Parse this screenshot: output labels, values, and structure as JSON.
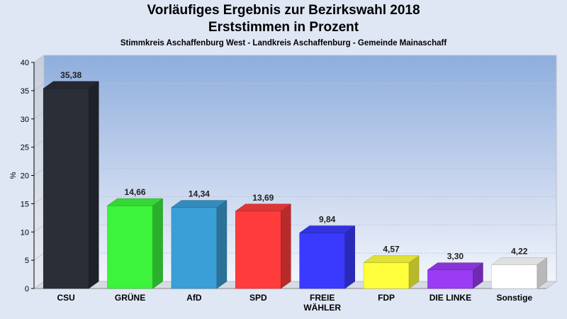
{
  "chart_data": {
    "type": "bar",
    "title": "Vorläufiges Ergebnis zur Bezirkswahl 2018",
    "title2": "Erststimmen in Prozent",
    "subtitle": "Stimmkreis Aschaffenburg West - Landkreis Aschaffenburg - Gemeinde Mainaschaff",
    "ylabel": "%",
    "ylim": [
      0,
      40
    ],
    "yticks": [
      "0",
      "5",
      "10",
      "15",
      "20",
      "25",
      "30",
      "35",
      "40"
    ],
    "categories": [
      [
        "CSU"
      ],
      [
        "GRÜNE"
      ],
      [
        "AfD"
      ],
      [
        "SPD"
      ],
      [
        "FREIE",
        "WÄHLER"
      ],
      [
        "FDP"
      ],
      [
        "DIE LINKE"
      ],
      [
        "Sonstige"
      ]
    ],
    "values": [
      35.38,
      14.66,
      14.34,
      13.69,
      9.84,
      4.57,
      3.3,
      4.22
    ],
    "value_labels": [
      "35,38",
      "14,66",
      "14,34",
      "13,69",
      "9,84",
      "4,57",
      "3,30",
      "4,22"
    ],
    "colors": [
      "#2a2e36",
      "#3cf43c",
      "#3a9fd6",
      "#ff3c3c",
      "#3a3aff",
      "#ffff3c",
      "#9a3cf4",
      "#ffffff"
    ]
  }
}
